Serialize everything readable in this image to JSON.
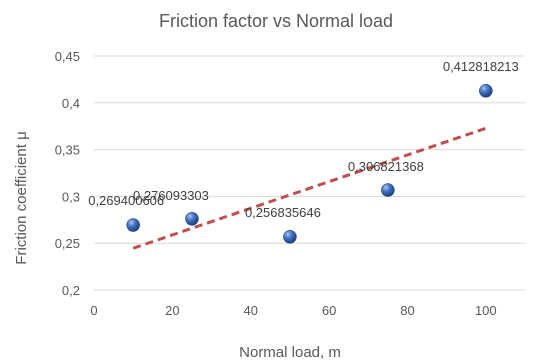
{
  "chart_data": {
    "type": "scatter",
    "title": "Friction factor vs Normal load",
    "xlabel": "Normal load, m",
    "ylabel": "Friction coefficient μ",
    "xlim": [
      0,
      110
    ],
    "ylim": [
      0.2,
      0.45
    ],
    "x_ticks": [
      "0",
      "20",
      "40",
      "60",
      "80",
      "100"
    ],
    "y_ticks": [
      "0,2",
      "0,25",
      "0,3",
      "0,35",
      "0,4",
      "0,45"
    ],
    "grid": true,
    "legend": "none",
    "series": [
      {
        "points": [
          {
            "x": 10,
            "y": 0.269400606,
            "label": "0,269400606"
          },
          {
            "x": 25,
            "y": 0.276093303,
            "label": "0,276093303"
          },
          {
            "x": 50,
            "y": 0.256835646,
            "label": "0,256835646"
          },
          {
            "x": 75,
            "y": 0.306821368,
            "label": "0,306821368"
          },
          {
            "x": 100,
            "y": 0.412818213,
            "label": "0,412818213"
          }
        ],
        "marker_color": "#4472c4"
      }
    ],
    "trendline": {
      "type": "linear",
      "color": "#c0504d",
      "dashed": true,
      "x_range": [
        10,
        100
      ]
    }
  }
}
